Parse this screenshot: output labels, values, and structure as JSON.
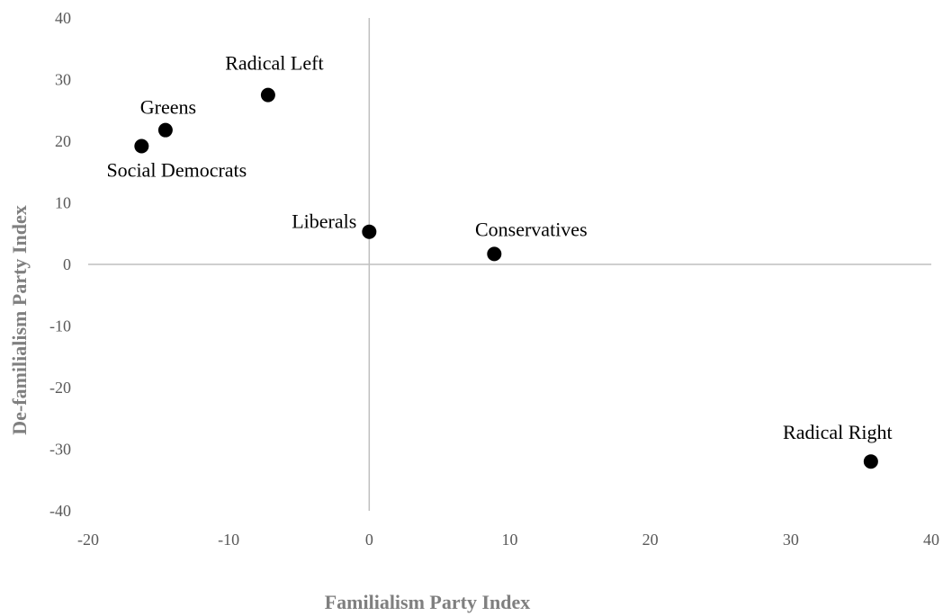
{
  "chart_data": {
    "type": "scatter",
    "title": "",
    "xlabel": "Familialism Party Index",
    "ylabel": "De-familialism Party Index",
    "xlim": [
      -20,
      40
    ],
    "ylim": [
      -40,
      40
    ],
    "x_ticks": [
      -20,
      -10,
      0,
      10,
      20,
      30,
      40
    ],
    "y_ticks": [
      40,
      30,
      20,
      10,
      0,
      -10,
      -20,
      -30,
      -40
    ],
    "grid": false,
    "legend": "none",
    "marker_color": "#000000",
    "axis_color": "#bfbfbf",
    "points": [
      {
        "label": "Radical Left",
        "x": -7.2,
        "y": 27.5
      },
      {
        "label": "Greens",
        "x": -14.5,
        "y": 21.8
      },
      {
        "label": "Social Democrats",
        "x": -16.2,
        "y": 19.2
      },
      {
        "label": "Liberals",
        "x": 0.0,
        "y": 5.3
      },
      {
        "label": "Conservatives",
        "x": 8.9,
        "y": 1.7
      },
      {
        "label": "Radical Right",
        "x": 35.7,
        "y": -32.0
      }
    ]
  }
}
